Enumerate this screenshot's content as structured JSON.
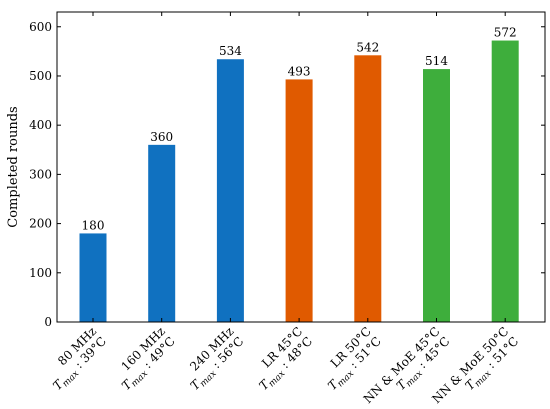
{
  "chart_data": {
    "type": "bar",
    "title": "",
    "xlabel": "",
    "ylabel": "Completed rounds",
    "ylim": [
      0,
      630
    ],
    "yticks": [
      0,
      100,
      200,
      300,
      400,
      500,
      600
    ],
    "grid": false,
    "categories": [
      {
        "line1": "80 MHz",
        "line2": "T_max : 39°C"
      },
      {
        "line1": "160 MHz",
        "line2": "T_max : 49°C"
      },
      {
        "line1": "240 MHz",
        "line2": "T_max : 56°C"
      },
      {
        "line1": "LR 45°C",
        "line2": "T_max : 48°C"
      },
      {
        "line1": "LR 50°C",
        "line2": "T_max : 51°C"
      },
      {
        "line1": "NN & MoE 45°C",
        "line2": "T_max : 45°C"
      },
      {
        "line1": "NN & MoE 50°C",
        "line2": "T_max : 51°C"
      }
    ],
    "values": [
      180,
      360,
      534,
      493,
      542,
      514,
      572
    ],
    "colors": [
      "#1071c0",
      "#1071c0",
      "#1071c0",
      "#e05a00",
      "#e05a00",
      "#3eae3c",
      "#3eae3c"
    ]
  }
}
